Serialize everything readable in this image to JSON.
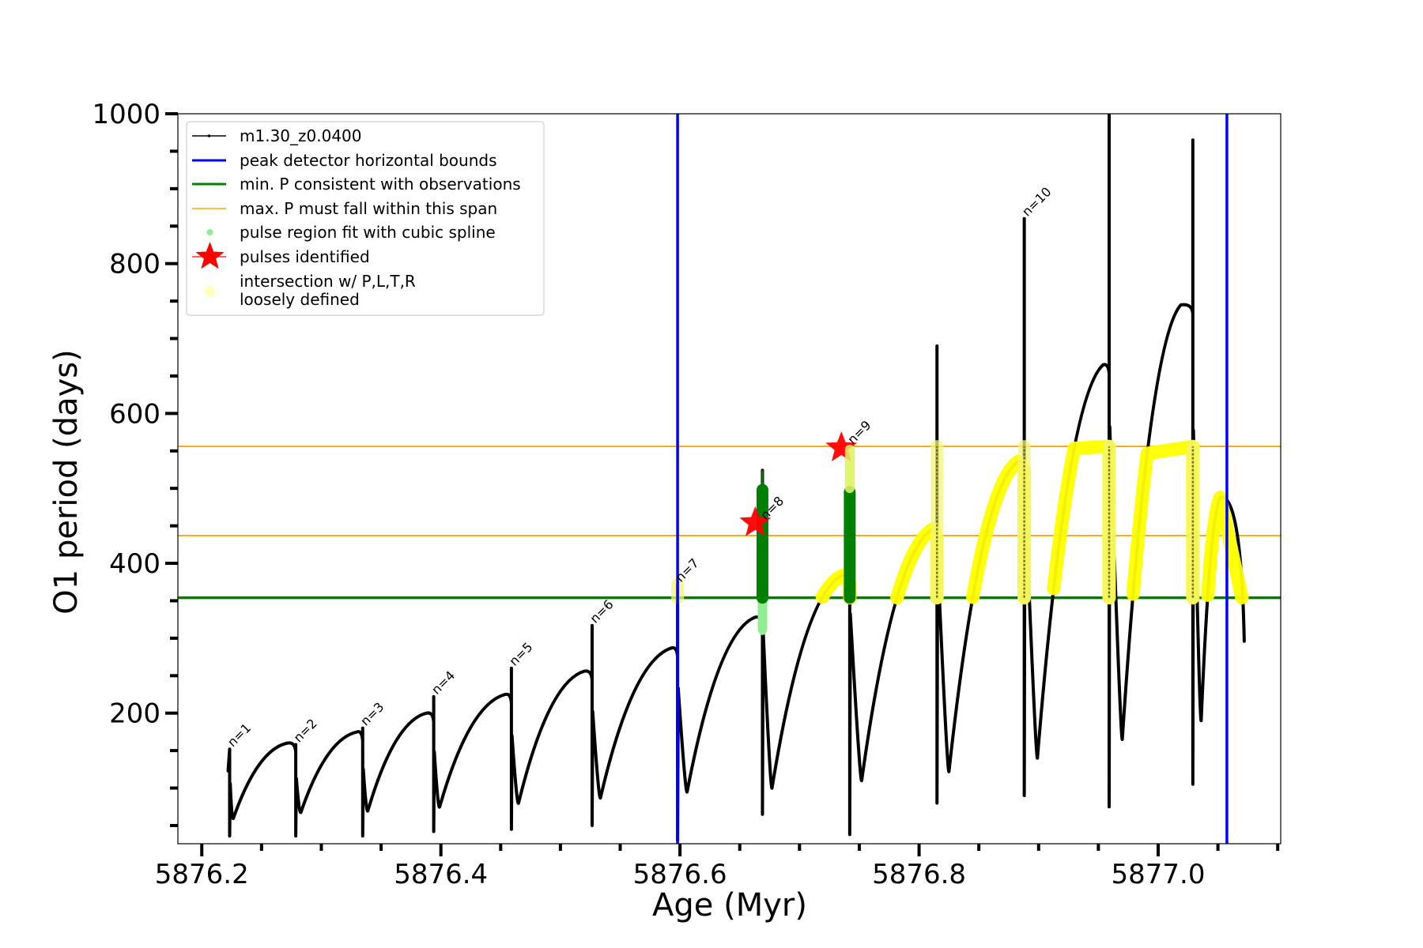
{
  "chart_data": {
    "type": "line",
    "title": "",
    "xlabel": "Age (Myr)",
    "ylabel": "O1 period (days)",
    "xlim": [
      5876.18,
      5877.1025
    ],
    "ylim": [
      25.7,
      1000
    ],
    "xticks": {
      "major": [
        5876.2,
        5876.4,
        5876.6,
        5876.8,
        5877.0
      ],
      "major_labels": [
        "5876.2",
        "5876.4",
        "5876.6",
        "5876.8",
        "5877.0"
      ],
      "minor_step": 0.05
    },
    "yticks": {
      "major": [
        200,
        400,
        600,
        800,
        1000
      ],
      "major_labels": [
        "200",
        "400",
        "600",
        "800",
        "1000"
      ],
      "minor_step": 50
    },
    "grid": false,
    "legend": {
      "location": "upper-left",
      "entries": [
        {
          "label": "m1.30_z0.0400",
          "style": "line-dot",
          "color": "#000000"
        },
        {
          "label": "peak detector horizontal bounds",
          "style": "line",
          "color": "#0000ff"
        },
        {
          "label": "min. P consistent with observations",
          "style": "line",
          "color": "#008000"
        },
        {
          "label": "max. P must fall within this span",
          "style": "thin-line",
          "color": "#ffa500"
        },
        {
          "label": "pulse region fit with cubic spline",
          "style": "dot",
          "color": "#90ee90"
        },
        {
          "label": "pulses identified",
          "style": "star",
          "color": "#ff0000"
        },
        {
          "label": "intersection w/ P,L,T,R",
          "label_line2": "loosely defined",
          "style": "circle",
          "color": "#ffffc0"
        }
      ]
    },
    "vertical_lines": [
      {
        "name": "peak detector horizontal bounds",
        "x": 5876.598,
        "color": "#0000ff"
      },
      {
        "name": "peak detector horizontal bounds",
        "x": 5877.0575,
        "color": "#0000ff"
      }
    ],
    "horizontal_lines": [
      {
        "name": "min. P consistent with observations",
        "y": 354,
        "color": "#008000"
      },
      {
        "name": "max. P must fall within this span (lower)",
        "y": 437,
        "color": "#ffa500"
      },
      {
        "name": "max. P must fall within this span (upper)",
        "y": 556,
        "color": "#ffa500"
      }
    ],
    "series": [
      {
        "name": "m1.30_z0.0400",
        "color": "#000000",
        "start": {
          "x": 5876.222,
          "y": 123
        },
        "cycles": [
          {
            "spike_x": 5876.2233,
            "spike_top": 152,
            "spike_bottom": 36,
            "trough_x": 5876.2265,
            "trough_y": 60,
            "peak_x": 5876.2716,
            "peak_y": 160
          },
          {
            "spike_x": 5876.2786,
            "spike_top": 158,
            "spike_bottom": 36,
            "trough_x": 5876.283,
            "trough_y": 68,
            "peak_x": 5876.33,
            "peak_y": 175
          },
          {
            "spike_x": 5876.3346,
            "spike_top": 180,
            "spike_bottom": 36,
            "trough_x": 5876.339,
            "trough_y": 70,
            "peak_x": 5876.388,
            "peak_y": 200
          },
          {
            "spike_x": 5876.394,
            "spike_top": 222,
            "spike_bottom": 42,
            "trough_x": 5876.399,
            "trough_y": 75,
            "peak_x": 5876.454,
            "peak_y": 225
          },
          {
            "spike_x": 5876.459,
            "spike_top": 260,
            "spike_bottom": 45,
            "trough_x": 5876.465,
            "trough_y": 80,
            "peak_x": 5876.52,
            "peak_y": 256
          },
          {
            "spike_x": 5876.5265,
            "spike_top": 317,
            "spike_bottom": 50,
            "trough_x": 5876.5335,
            "trough_y": 87,
            "peak_x": 5876.593,
            "peak_y": 287
          },
          {
            "spike_x": 5876.598,
            "spike_top": 372,
            "spike_bottom": 30,
            "trough_x": 5876.606,
            "trough_y": 95,
            "peak_x": 5876.663,
            "peak_y": 328
          },
          {
            "spike_x": 5876.669,
            "spike_top": 524,
            "spike_bottom": 65,
            "trough_x": 5876.677,
            "trough_y": 100,
            "peak_x": 5876.736,
            "peak_y": 384
          },
          {
            "spike_x": 5876.742,
            "spike_top": 555,
            "spike_bottom": 38,
            "trough_x": 5876.752,
            "trough_y": 110,
            "peak_x": 5876.812,
            "peak_y": 446
          },
          {
            "spike_x": 5876.815,
            "spike_top": 690,
            "spike_bottom": 80,
            "trough_x": 5876.825,
            "trough_y": 122,
            "peak_x": 5876.883,
            "peak_y": 536
          },
          {
            "spike_x": 5876.888,
            "spike_top": 860,
            "spike_bottom": 90,
            "trough_x": 5876.899,
            "trough_y": 140,
            "peak_x": 5876.954,
            "peak_y": 665
          },
          {
            "spike_x": 5876.959,
            "spike_top": 1000,
            "spike_bottom": 75,
            "trough_x": 5876.97,
            "trough_y": 165,
            "peak_x": 5877.019,
            "peak_y": 745
          },
          {
            "spike_x": 5877.029,
            "spike_top": 965,
            "spike_bottom": 105,
            "trough_x": 5877.036,
            "trough_y": 190,
            "peak_x": 5877.052,
            "peak_y": 488
          }
        ],
        "end": {
          "x": 5877.072,
          "y": 296
        }
      }
    ],
    "spline_regions": [
      {
        "x": 5876.669,
        "y_low": 354,
        "y_high": 498,
        "color": "#008000",
        "fit_color": "#90ee90",
        "fit_low": 312,
        "fit_high": 354
      },
      {
        "x": 5876.742,
        "y_low": 354,
        "y_high": 495,
        "color": "#008000",
        "fit_color": "#c8f08c",
        "fit_low": 495,
        "fit_high": 552
      }
    ],
    "pulses_identified": [
      {
        "label": "n=8",
        "x": 5876.663,
        "y": 454
      },
      {
        "label": "n=9",
        "x": 5876.735,
        "y": 554
      }
    ],
    "intersection_bars": [
      {
        "x": 5876.598,
        "y_low": 354,
        "y_high": 372
      },
      {
        "x": 5876.815,
        "y_low": 354,
        "y_high": 556
      },
      {
        "x": 5876.888,
        "y_low": 354,
        "y_high": 556
      },
      {
        "x": 5876.959,
        "y_low": 354,
        "y_high": 556
      },
      {
        "x": 5877.029,
        "y_low": 354,
        "y_high": 556
      }
    ],
    "intersection_arcs_color": "#ffff00",
    "annotations": [
      {
        "text": "n=1",
        "x": 5876.2233,
        "y": 152
      },
      {
        "text": "n=2",
        "x": 5876.2786,
        "y": 158
      },
      {
        "text": "n=3",
        "x": 5876.3346,
        "y": 180
      },
      {
        "text": "n=4",
        "x": 5876.394,
        "y": 222
      },
      {
        "text": "n=5",
        "x": 5876.459,
        "y": 260
      },
      {
        "text": "n=6",
        "x": 5876.5265,
        "y": 317
      },
      {
        "text": "n=7",
        "x": 5876.598,
        "y": 372
      },
      {
        "text": "n=8",
        "x": 5876.669,
        "y": 455
      },
      {
        "text": "n=9",
        "x": 5876.742,
        "y": 556
      },
      {
        "text": "n=10",
        "x": 5876.888,
        "y": 860
      }
    ]
  }
}
